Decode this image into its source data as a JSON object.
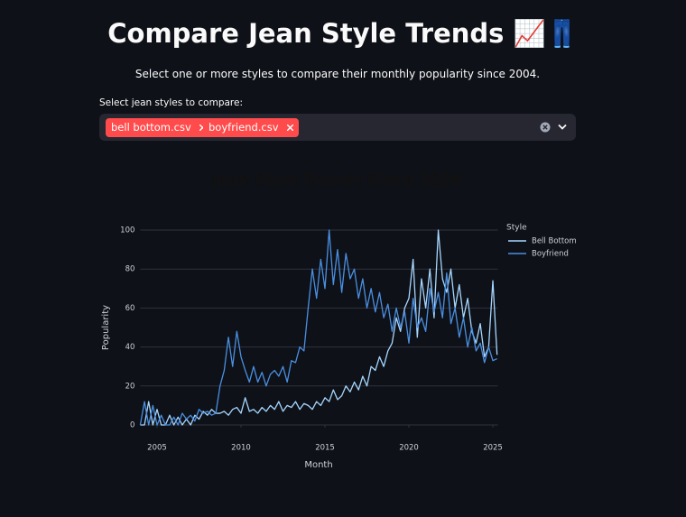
{
  "header": {
    "title": "Compare Jean Style Trends 📈👖",
    "subtitle": "Select one or more styles to compare their monthly popularity since 2004."
  },
  "multiselect": {
    "label": "Select jean styles to compare:",
    "selected": [
      "bell bottom.csv",
      "boyfriend.csv"
    ]
  },
  "chart_data": {
    "type": "line",
    "title": "Jean Style Trends Since 2004",
    "x_label": "Month",
    "y_label": "Popularity",
    "legend_title": "Style",
    "legend_position": "right",
    "grid": true,
    "x": [
      2004,
      2004.25,
      2004.5,
      2004.75,
      2005,
      2005.25,
      2005.5,
      2005.75,
      2006,
      2006.25,
      2006.5,
      2006.75,
      2007,
      2007.25,
      2007.5,
      2007.75,
      2008,
      2008.25,
      2008.5,
      2008.75,
      2009,
      2009.25,
      2009.5,
      2009.75,
      2010,
      2010.25,
      2010.5,
      2010.75,
      2011,
      2011.25,
      2011.5,
      2011.75,
      2012,
      2012.25,
      2012.5,
      2012.75,
      2013,
      2013.25,
      2013.5,
      2013.75,
      2014,
      2014.25,
      2014.5,
      2014.75,
      2015,
      2015.25,
      2015.5,
      2015.75,
      2016,
      2016.25,
      2016.5,
      2016.75,
      2017,
      2017.25,
      2017.5,
      2017.75,
      2018,
      2018.25,
      2018.5,
      2018.75,
      2019,
      2019.25,
      2019.5,
      2019.75,
      2020,
      2020.25,
      2020.5,
      2020.75,
      2021,
      2021.25,
      2021.5,
      2021.75,
      2022,
      2022.25,
      2022.5,
      2022.75,
      2023,
      2023.25,
      2023.5,
      2023.75,
      2024,
      2024.25,
      2024.5,
      2024.75,
      2025,
      2025.25
    ],
    "xlim": [
      2004,
      2025.3
    ],
    "xticks": [
      2005,
      2010,
      2015,
      2020,
      2025
    ],
    "ylim": [
      -5,
      105
    ],
    "yticks": [
      0,
      20,
      40,
      60,
      80,
      100
    ],
    "series": [
      {
        "name": "Bell Bottom",
        "color": "#a6d6ff",
        "values": [
          0,
          0,
          12,
          0,
          8,
          0,
          0,
          5,
          0,
          4,
          0,
          3,
          0,
          5,
          3,
          7,
          5,
          8,
          6,
          6,
          7,
          5,
          8,
          9,
          6,
          14,
          7,
          8,
          6,
          9,
          7,
          10,
          8,
          12,
          7,
          10,
          9,
          12,
          8,
          11,
          10,
          8,
          12,
          10,
          14,
          12,
          18,
          13,
          15,
          20,
          17,
          22,
          18,
          25,
          20,
          30,
          28,
          35,
          30,
          38,
          42,
          55,
          48,
          60,
          65,
          85,
          45,
          75,
          60,
          80,
          55,
          100,
          75,
          68,
          80,
          60,
          72,
          55,
          65,
          48,
          42,
          52,
          35,
          40,
          74,
          36
        ]
      },
      {
        "name": "Boyfriend",
        "color": "#4a8fe2",
        "values": [
          0,
          12,
          0,
          10,
          0,
          5,
          0,
          0,
          4,
          0,
          6,
          3,
          5,
          2,
          8,
          6,
          7,
          5,
          6,
          20,
          28,
          45,
          30,
          48,
          35,
          28,
          22,
          30,
          22,
          27,
          20,
          26,
          28,
          25,
          30,
          22,
          33,
          32,
          40,
          38,
          60,
          80,
          65,
          85,
          70,
          100,
          72,
          90,
          68,
          88,
          75,
          80,
          65,
          75,
          60,
          70,
          58,
          68,
          55,
          62,
          48,
          60,
          50,
          58,
          42,
          65,
          50,
          55,
          48,
          70,
          58,
          68,
          55,
          78,
          52,
          60,
          45,
          55,
          40,
          50,
          38,
          42,
          32,
          40,
          33,
          34
        ]
      }
    ]
  }
}
